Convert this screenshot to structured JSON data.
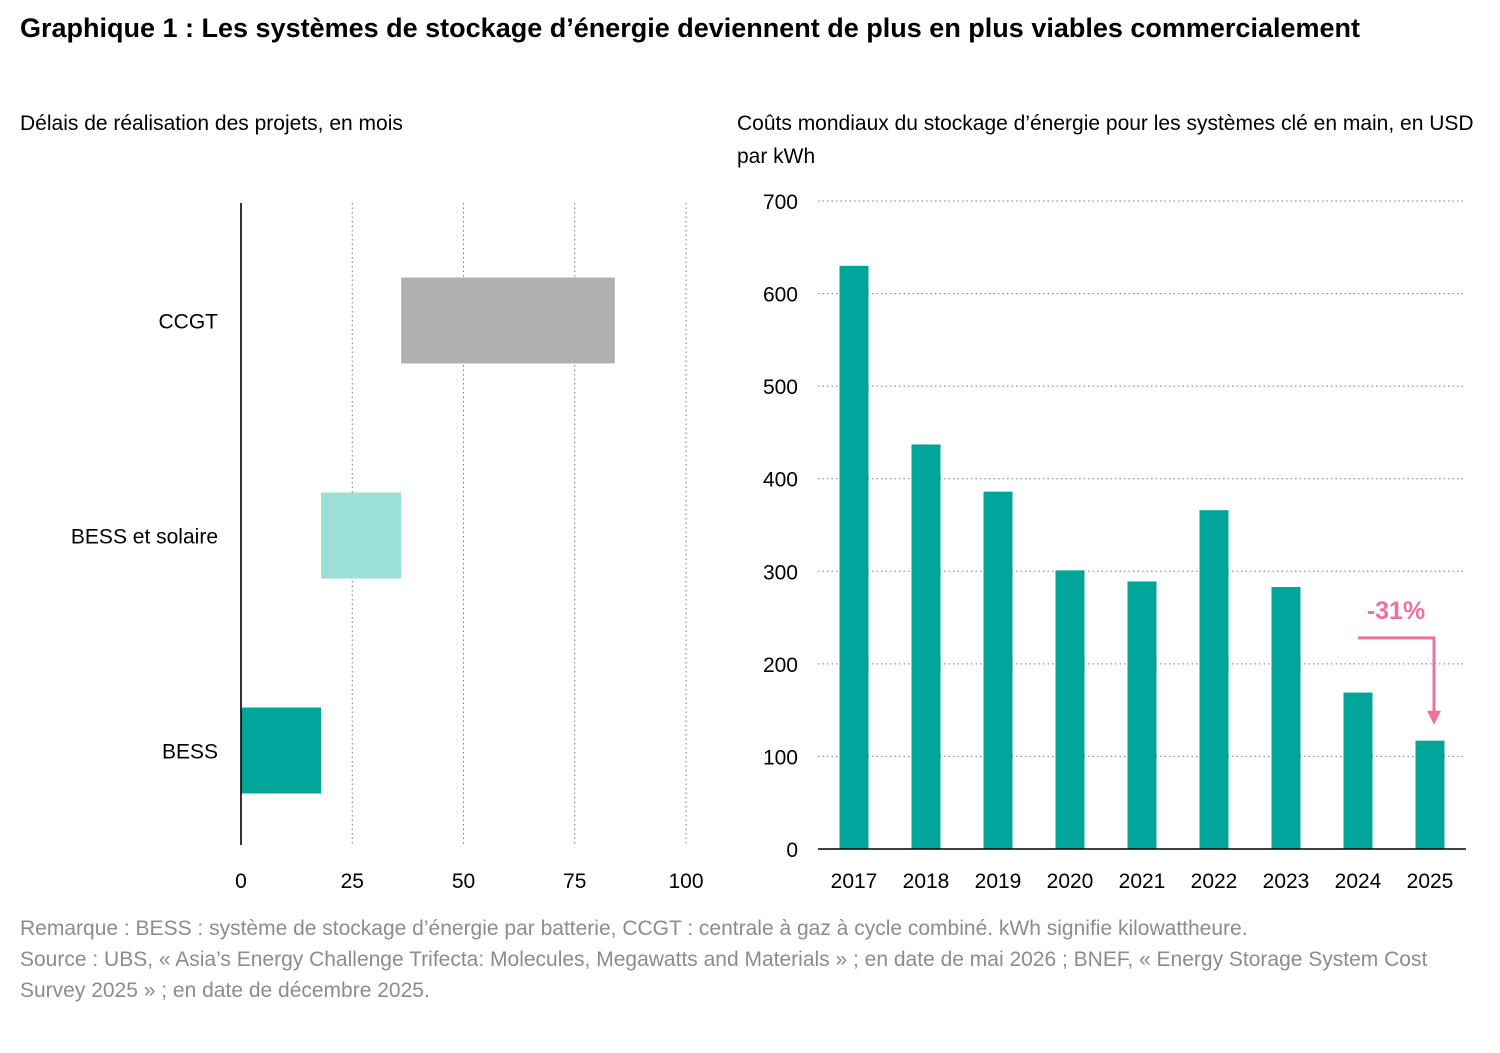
{
  "title": "Graphique 1 : Les systèmes de stockage d’énergie deviennent de plus en plus viables commercialement",
  "colors": {
    "teal": "#00a59a",
    "light_teal": "#9bdfd6",
    "gray": "#b0b0b0",
    "pink": "#f0719b",
    "note_text": "#8c8c8c"
  },
  "chart_data": [
    {
      "type": "bar",
      "orientation": "horizontal-range",
      "subtitle": "Délais de réalisation des projets, en mois",
      "categories": [
        "CCGT",
        "BESS et solaire",
        "BESS"
      ],
      "ranges": [
        [
          36,
          84
        ],
        [
          18,
          36
        ],
        [
          0,
          18
        ]
      ],
      "colors": [
        "#b0b0b0",
        "#9bdfd6",
        "#00a59a"
      ],
      "xlim": [
        0,
        100
      ],
      "xticks": [
        "0",
        "25",
        "50",
        "75",
        "100"
      ],
      "grid": "vertical-dotted"
    },
    {
      "type": "bar",
      "subtitle": "Coûts mondiaux du stockage d’énergie pour les systèmes clé en main, en USD par kWh",
      "categories": [
        "2017",
        "2018",
        "2019",
        "2020",
        "2021",
        "2022",
        "2023",
        "2024",
        "2025"
      ],
      "values": [
        630,
        437,
        386,
        301,
        289,
        366,
        283,
        169,
        117
      ],
      "color": "#00a59a",
      "ylim": [
        0,
        700
      ],
      "yticks": [
        "0",
        "100",
        "200",
        "300",
        "400",
        "500",
        "600",
        "700"
      ],
      "grid": "horizontal-dotted",
      "annotation": {
        "text": "-31%",
        "from": "2024",
        "to": "2025",
        "color": "#f0719b"
      }
    }
  ],
  "notes": {
    "remark": "Remarque : BESS : système de stockage d’énergie par batterie, CCGT : centrale à gaz à cycle combiné. kWh signifie kilowattheure.",
    "source": "Source : UBS, « Asia’s Energy Challenge Trifecta: Molecules, Megawatts and Materials » ; en date de mai 2026 ; BNEF, « Energy Storage System Cost Survey 2025 » ; en date de décembre 2025."
  }
}
